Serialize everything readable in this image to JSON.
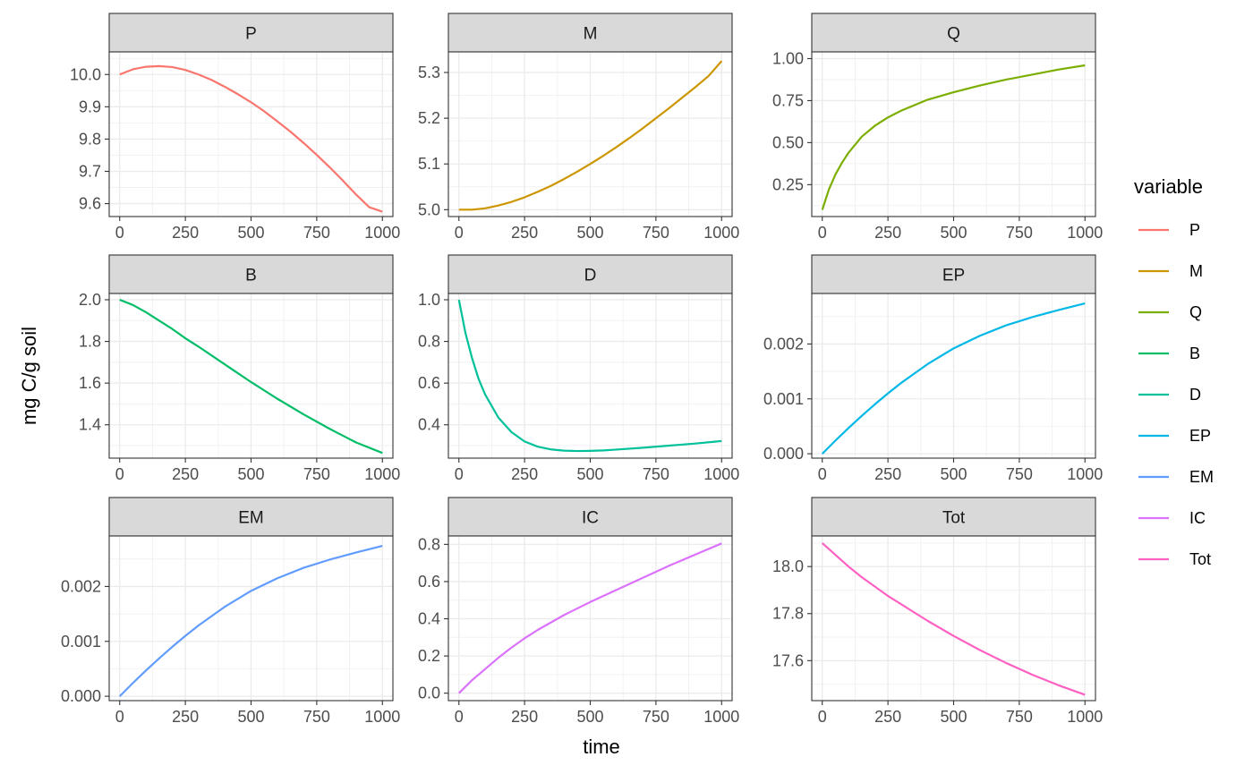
{
  "chart_data": {
    "type": "line",
    "layout": "facet-grid-3x3",
    "xlabel": "time",
    "ylabel": "mg C/g soil",
    "legend": {
      "title": "variable",
      "position": "right"
    },
    "grid": true,
    "panels": [
      {
        "name": "P",
        "color": "#F8766D",
        "xlim": [
          -40,
          1040
        ],
        "ylim": [
          9.56,
          10.07
        ],
        "xticks": [
          0,
          250,
          500,
          750,
          1000
        ],
        "xtick_labels": [
          "0",
          "250",
          "500",
          "750",
          "1000"
        ],
        "yticks": [
          9.6,
          9.7,
          9.8,
          9.9,
          10.0
        ],
        "ytick_labels": [
          "9.6",
          "9.7",
          "9.8",
          "9.9",
          "10.0"
        ],
        "x": [
          0,
          50,
          100,
          150,
          200,
          250,
          300,
          350,
          400,
          450,
          500,
          550,
          600,
          650,
          700,
          750,
          800,
          850,
          900,
          950,
          1000
        ],
        "y": [
          10.0,
          10.016,
          10.024,
          10.026,
          10.023,
          10.014,
          10.0,
          9.983,
          9.962,
          9.939,
          9.914,
          9.886,
          9.855,
          9.823,
          9.788,
          9.751,
          9.712,
          9.671,
          9.628,
          9.589,
          9.575
        ]
      },
      {
        "name": "M",
        "color": "#CD9600",
        "xlim": [
          -40,
          1040
        ],
        "ylim": [
          4.985,
          5.345
        ],
        "xticks": [
          0,
          250,
          500,
          750,
          1000
        ],
        "xtick_labels": [
          "0",
          "250",
          "500",
          "750",
          "1000"
        ],
        "yticks": [
          5.0,
          5.1,
          5.2,
          5.3
        ],
        "ytick_labels": [
          "5.0",
          "5.1",
          "5.2",
          "5.3"
        ],
        "x": [
          0,
          50,
          100,
          150,
          200,
          250,
          300,
          350,
          400,
          450,
          500,
          550,
          600,
          650,
          700,
          750,
          800,
          850,
          900,
          950,
          1000
        ],
        "y": [
          5.0,
          5.0,
          5.003,
          5.009,
          5.017,
          5.027,
          5.039,
          5.052,
          5.067,
          5.083,
          5.1,
          5.118,
          5.137,
          5.157,
          5.178,
          5.2,
          5.222,
          5.245,
          5.268,
          5.292,
          5.325
        ]
      },
      {
        "name": "Q",
        "color": "#7CAE00",
        "xlim": [
          -40,
          1040
        ],
        "ylim": [
          0.06,
          1.04
        ],
        "xticks": [
          0,
          250,
          500,
          750,
          1000
        ],
        "xtick_labels": [
          "0",
          "250",
          "500",
          "750",
          "1000"
        ],
        "yticks": [
          0.25,
          0.5,
          0.75,
          1.0
        ],
        "ytick_labels": [
          "0.25",
          "0.50",
          "0.75",
          "1.00"
        ],
        "x": [
          0,
          25,
          50,
          75,
          100,
          150,
          200,
          250,
          300,
          400,
          500,
          600,
          700,
          800,
          900,
          1000
        ],
        "y": [
          0.1,
          0.22,
          0.31,
          0.38,
          0.44,
          0.535,
          0.6,
          0.65,
          0.69,
          0.755,
          0.8,
          0.84,
          0.875,
          0.905,
          0.935,
          0.96
        ]
      },
      {
        "name": "B",
        "color": "#00BE67",
        "xlim": [
          -40,
          1040
        ],
        "ylim": [
          1.24,
          2.03
        ],
        "xticks": [
          0,
          250,
          500,
          750,
          1000
        ],
        "xtick_labels": [
          "0",
          "250",
          "500",
          "750",
          "1000"
        ],
        "yticks": [
          1.4,
          1.6,
          1.8,
          2.0
        ],
        "ytick_labels": [
          "1.4",
          "1.6",
          "1.8",
          "2.0"
        ],
        "x": [
          0,
          50,
          100,
          150,
          200,
          250,
          300,
          400,
          500,
          600,
          700,
          800,
          900,
          1000
        ],
        "y": [
          2.0,
          1.975,
          1.94,
          1.9,
          1.86,
          1.815,
          1.775,
          1.69,
          1.605,
          1.525,
          1.45,
          1.38,
          1.315,
          1.265
        ]
      },
      {
        "name": "D",
        "color": "#00C19A",
        "xlim": [
          -40,
          1040
        ],
        "ylim": [
          0.24,
          1.03
        ],
        "xticks": [
          0,
          250,
          500,
          750,
          1000
        ],
        "xtick_labels": [
          "0",
          "250",
          "500",
          "750",
          "1000"
        ],
        "yticks": [
          0.4,
          0.6,
          0.8,
          1.0
        ],
        "ytick_labels": [
          "0.4",
          "0.6",
          "0.8",
          "1.0"
        ],
        "x": [
          0,
          25,
          50,
          75,
          100,
          150,
          200,
          250,
          300,
          350,
          400,
          450,
          500,
          550,
          600,
          700,
          800,
          900,
          1000
        ],
        "y": [
          1.0,
          0.84,
          0.72,
          0.62,
          0.545,
          0.435,
          0.365,
          0.32,
          0.295,
          0.282,
          0.276,
          0.274,
          0.275,
          0.277,
          0.281,
          0.29,
          0.3,
          0.31,
          0.322
        ]
      },
      {
        "name": "EP",
        "color": "#00B8E7",
        "xlim": [
          -40,
          1040
        ],
        "ylim": [
          -8e-05,
          0.00292
        ],
        "xticks": [
          0,
          250,
          500,
          750,
          1000
        ],
        "xtick_labels": [
          "0",
          "250",
          "500",
          "750",
          "1000"
        ],
        "yticks": [
          0.0,
          0.001,
          0.002
        ],
        "ytick_labels": [
          "0.000",
          "0.001",
          "0.002"
        ],
        "x": [
          0,
          50,
          100,
          150,
          200,
          250,
          300,
          400,
          500,
          600,
          700,
          800,
          900,
          1000
        ],
        "y": [
          0.0,
          0.00024,
          0.00047,
          0.00069,
          0.0009,
          0.0011,
          0.00129,
          0.00163,
          0.00192,
          0.00215,
          0.00234,
          0.00249,
          0.00262,
          0.00274
        ]
      },
      {
        "name": "EM",
        "color": "#619CFF",
        "xlim": [
          -40,
          1040
        ],
        "ylim": [
          -8e-05,
          0.00292
        ],
        "xticks": [
          0,
          250,
          500,
          750,
          1000
        ],
        "xtick_labels": [
          "0",
          "250",
          "500",
          "750",
          "1000"
        ],
        "yticks": [
          0.0,
          0.001,
          0.002
        ],
        "ytick_labels": [
          "0.000",
          "0.001",
          "0.002"
        ],
        "x": [
          0,
          50,
          100,
          150,
          200,
          250,
          300,
          400,
          500,
          600,
          700,
          800,
          900,
          1000
        ],
        "y": [
          0.0,
          0.00024,
          0.00047,
          0.00069,
          0.0009,
          0.0011,
          0.00129,
          0.00163,
          0.00192,
          0.00215,
          0.00234,
          0.00249,
          0.00262,
          0.00274
        ]
      },
      {
        "name": "IC",
        "color": "#DB72FB",
        "xlim": [
          -40,
          1040
        ],
        "ylim": [
          -0.04,
          0.845
        ],
        "xticks": [
          0,
          250,
          500,
          750,
          1000
        ],
        "xtick_labels": [
          "0",
          "250",
          "500",
          "750",
          "1000"
        ],
        "yticks": [
          0.0,
          0.2,
          0.4,
          0.6,
          0.8
        ],
        "ytick_labels": [
          "0.0",
          "0.2",
          "0.4",
          "0.6",
          "0.8"
        ],
        "x": [
          0,
          50,
          100,
          150,
          200,
          250,
          300,
          400,
          500,
          600,
          700,
          800,
          900,
          1000
        ],
        "y": [
          0.0,
          0.07,
          0.13,
          0.19,
          0.245,
          0.295,
          0.34,
          0.42,
          0.49,
          0.555,
          0.62,
          0.685,
          0.745,
          0.805
        ]
      },
      {
        "name": "Tot",
        "color": "#FF61C3",
        "xlim": [
          -40,
          1040
        ],
        "ylim": [
          17.43,
          18.13
        ],
        "xticks": [
          0,
          250,
          500,
          750,
          1000
        ],
        "xtick_labels": [
          "0",
          "250",
          "500",
          "750",
          "1000"
        ],
        "yticks": [
          17.6,
          17.8,
          18.0
        ],
        "ytick_labels": [
          "17.6",
          "17.8",
          "18.0"
        ],
        "x": [
          0,
          50,
          100,
          150,
          200,
          250,
          300,
          400,
          500,
          600,
          700,
          800,
          900,
          1000
        ],
        "y": [
          18.1,
          18.05,
          18.0,
          17.955,
          17.915,
          17.875,
          17.84,
          17.77,
          17.705,
          17.645,
          17.59,
          17.54,
          17.495,
          17.455
        ]
      }
    ]
  }
}
